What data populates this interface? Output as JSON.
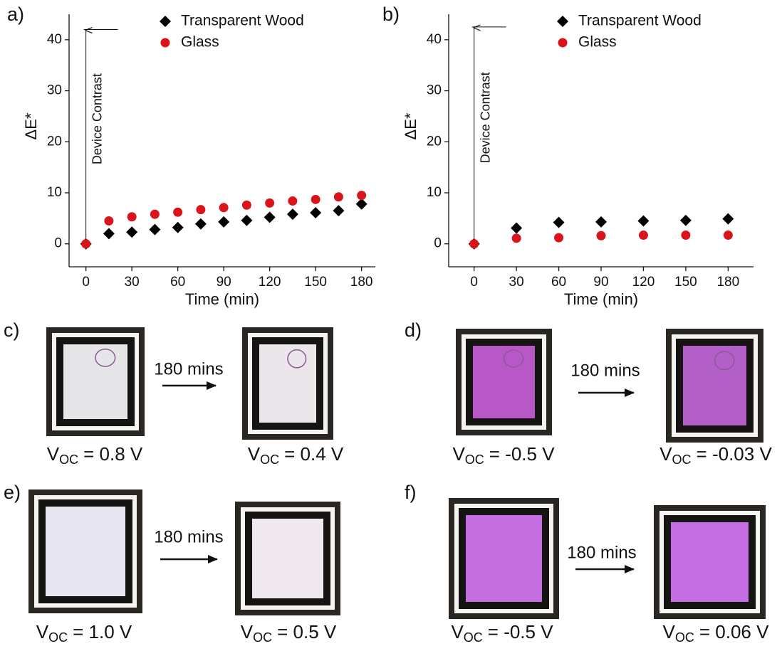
{
  "chart_data": [
    {
      "type": "scatter",
      "panel_label": "a)",
      "x_label": "Time (min)",
      "y_label": "ΔE*",
      "x": [
        0,
        15,
        30,
        45,
        60,
        75,
        90,
        105,
        120,
        135,
        150,
        165,
        180
      ],
      "series": [
        {
          "name": "Transparent Wood",
          "color": "#000000",
          "marker": "diamond",
          "values": [
            0,
            2.0,
            2.3,
            2.8,
            3.2,
            3.9,
            4.3,
            4.6,
            5.2,
            5.8,
            6.1,
            6.5,
            7.8
          ]
        },
        {
          "name": "Glass",
          "color": "#d9141b",
          "marker": "circle",
          "values": [
            0,
            4.5,
            5.3,
            5.8,
            6.2,
            6.7,
            7.1,
            7.6,
            8.0,
            8.4,
            8.7,
            9.2,
            9.5
          ]
        }
      ],
      "xlim": [
        -11,
        189
      ],
      "xticks": [
        0,
        30,
        60,
        90,
        120,
        150,
        180
      ],
      "ylim": [
        -4.5,
        45
      ],
      "yticks": [
        0,
        10,
        20,
        30,
        40
      ],
      "annotation": {
        "text": "Device Contrast",
        "value": 42
      }
    },
    {
      "type": "scatter",
      "panel_label": "b)",
      "x_label": "Time (min)",
      "y_label": "ΔE*",
      "x": [
        0,
        30,
        60,
        90,
        120,
        150,
        180
      ],
      "series": [
        {
          "name": "Transparent Wood",
          "color": "#000000",
          "marker": "diamond",
          "values": [
            0,
            3.1,
            4.2,
            4.3,
            4.5,
            4.6,
            4.9
          ]
        },
        {
          "name": "Glass",
          "color": "#d9141b",
          "marker": "circle",
          "values": [
            0,
            1.1,
            1.2,
            1.6,
            1.7,
            1.7,
            1.7
          ]
        }
      ],
      "xlim": [
        -18,
        198
      ],
      "xticks": [
        0,
        30,
        60,
        90,
        120,
        150,
        180
      ],
      "ylim": [
        -4.5,
        45
      ],
      "yticks": [
        0,
        10,
        20,
        30,
        40
      ],
      "annotation": {
        "text": "Device Contrast",
        "value": 42.5
      }
    }
  ],
  "photo_panels": [
    {
      "label": "c)",
      "arrow_text": "180 mins",
      "before": {
        "symbol": "V",
        "subscript": "OC",
        "text": "= 0.8 V"
      },
      "after": {
        "symbol": "V",
        "subscript": "OC",
        "text": "= 0.4 V"
      }
    },
    {
      "label": "d)",
      "arrow_text": "180 mins",
      "before": {
        "symbol": "V",
        "subscript": "OC",
        "text": "= -0.5 V"
      },
      "after": {
        "symbol": "V",
        "subscript": "OC",
        "text": "= -0.03 V"
      }
    },
    {
      "label": "e)",
      "arrow_text": "180 mins",
      "before": {
        "symbol": "V",
        "subscript": "OC",
        "text": "= 1.0 V"
      },
      "after": {
        "symbol": "V",
        "subscript": "OC",
        "text": "= 0.5 V"
      }
    },
    {
      "label": "f)",
      "arrow_text": "180 mins",
      "before": {
        "symbol": "V",
        "subscript": "OC",
        "text": "= -0.5 V"
      },
      "after": {
        "symbol": "V",
        "subscript": "OC",
        "text": "= 0.06 V"
      }
    }
  ]
}
